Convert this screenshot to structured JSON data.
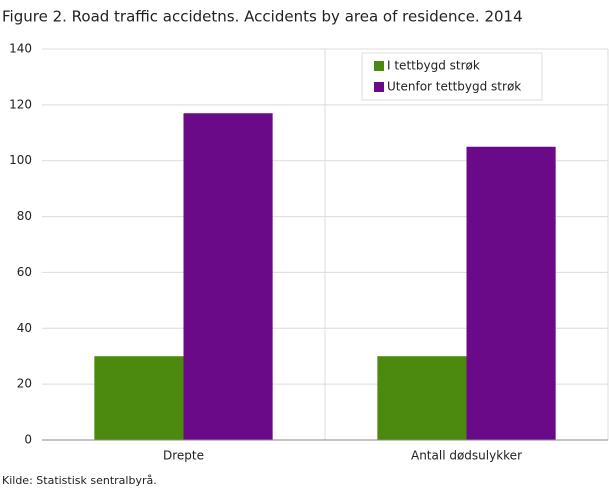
{
  "chart_data": {
    "type": "bar",
    "title": "Figure 2. Road traffic accidetns. Accidents by area of residence. 2014",
    "categories": [
      "Drepte",
      "Antall dødsulykker"
    ],
    "series": [
      {
        "name": "I tettbygd strøk",
        "color": "#4b8a0e",
        "values": [
          30,
          30
        ]
      },
      {
        "name": "Utenfor tettbygd strøk",
        "color": "#6b0a88",
        "values": [
          117,
          105
        ]
      }
    ],
    "ylim": [
      0,
      140
    ],
    "yticks": [
      0,
      20,
      40,
      60,
      80,
      100,
      120,
      140
    ],
    "grid": true,
    "legend": "upper right",
    "source": "Kilde: Statistisk sentralbyrå."
  }
}
